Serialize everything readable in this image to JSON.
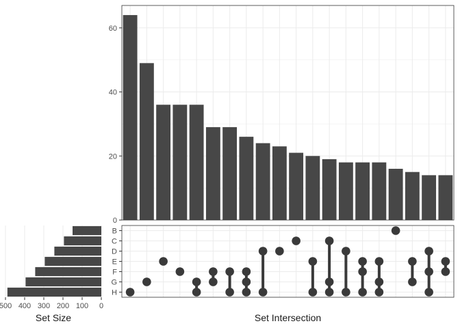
{
  "chart_data": {
    "type": "bar",
    "xlabel": "Set Intersection",
    "size_xlabel": "Set Size",
    "sets": [
      "B",
      "C",
      "D",
      "E",
      "F",
      "G",
      "H"
    ],
    "intersection_sizes": [
      64,
      49,
      36,
      36,
      36,
      29,
      29,
      26,
      24,
      23,
      21,
      20,
      19,
      18,
      18,
      18,
      16,
      15,
      14,
      14
    ],
    "intersections": [
      [
        "H"
      ],
      [
        "G"
      ],
      [
        "E"
      ],
      [
        "F"
      ],
      [
        "G",
        "H"
      ],
      [
        "F",
        "G"
      ],
      [
        "F",
        "H"
      ],
      [
        "F",
        "G",
        "H"
      ],
      [
        "D",
        "H"
      ],
      [
        "D"
      ],
      [
        "C"
      ],
      [
        "E",
        "H"
      ],
      [
        "C",
        "G",
        "H"
      ],
      [
        "D",
        "H"
      ],
      [
        "E",
        "F",
        "H"
      ],
      [
        "E",
        "G",
        "H"
      ],
      [
        "B"
      ],
      [
        "E",
        "G"
      ],
      [
        "D",
        "F",
        "H"
      ],
      [
        "E",
        "F"
      ]
    ],
    "intersection_ylim": [
      0,
      67
    ],
    "intersection_yticks": [
      0,
      20,
      40,
      60
    ],
    "set_sizes": [
      150,
      195,
      245,
      295,
      345,
      395,
      490
    ],
    "set_size_xlim": [
      500,
      0
    ],
    "set_size_xticks": [
      500,
      400,
      300,
      200,
      100,
      0
    ],
    "grid": true,
    "bar_color": "#474747",
    "dot_color": "#3a3a3a",
    "grid_color": "#ebebeb",
    "panel_border": "#333333"
  }
}
